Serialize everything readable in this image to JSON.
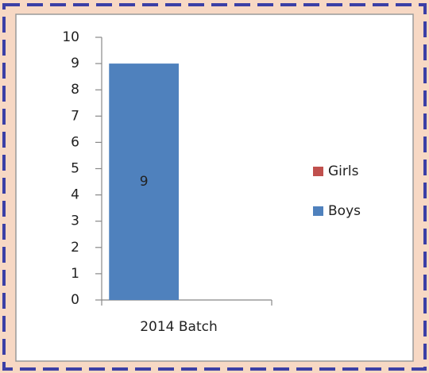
{
  "chart_data": {
    "type": "stacked_bar",
    "categories": [
      "2014 Batch"
    ],
    "series": [
      {
        "name": "Boys",
        "color": "#4f81bd",
        "values": [
          9
        ]
      },
      {
        "name": "Girls",
        "color": "#c0504d",
        "values": [
          0
        ]
      }
    ],
    "ylim": [
      0,
      10
    ],
    "yticks": [
      0,
      1,
      2,
      3,
      4,
      5,
      6,
      7,
      8,
      9,
      10
    ],
    "legend": "right",
    "data_labels": true
  }
}
